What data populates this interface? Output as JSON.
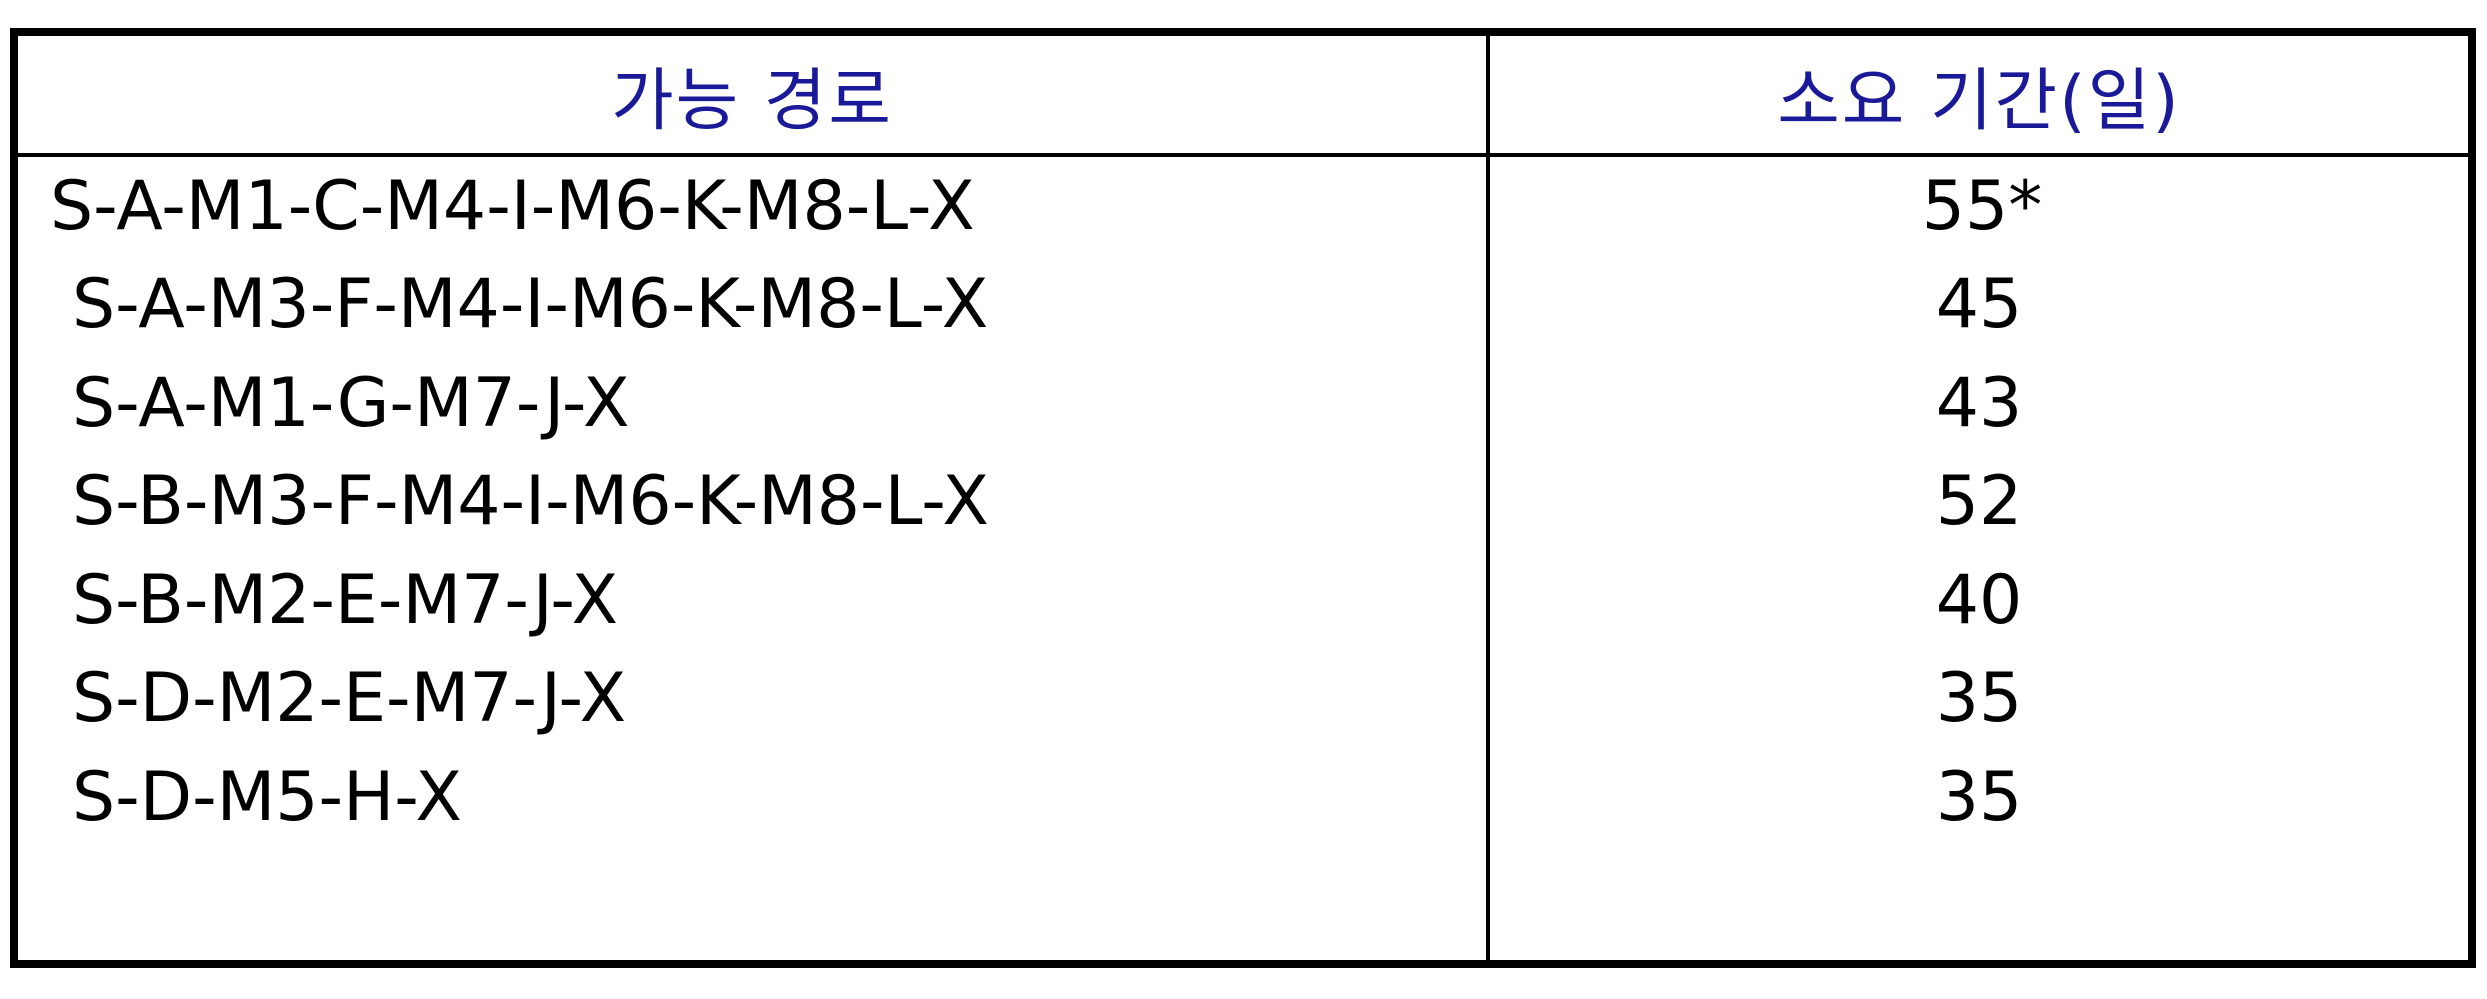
{
  "table": {
    "headers": {
      "path": "가능 경로",
      "duration": "소요 기간(일)"
    },
    "rows": [
      {
        "path": "S-A-M1-C-M4-I-M6-K-M8-L-X",
        "days": "55*"
      },
      {
        "path": "S-A-M3-F-M4-I-M6-K-M8-L-X",
        "days": "45"
      },
      {
        "path": "S-A-M1-G-M7-J-X",
        "days": "43"
      },
      {
        "path": "S-B-M3-F-M4-I-M6-K-M8-L-X",
        "days": "52"
      },
      {
        "path": "S-B-M2-E-M7-J-X",
        "days": "40"
      },
      {
        "path": "S-D-M2-E-M7-J-X",
        "days": "35"
      },
      {
        "path": "S-D-M5-H-X",
        "days": "35"
      }
    ]
  },
  "colors": {
    "header_text": "#1a1a99",
    "body_text": "#000000",
    "border": "#000000"
  }
}
